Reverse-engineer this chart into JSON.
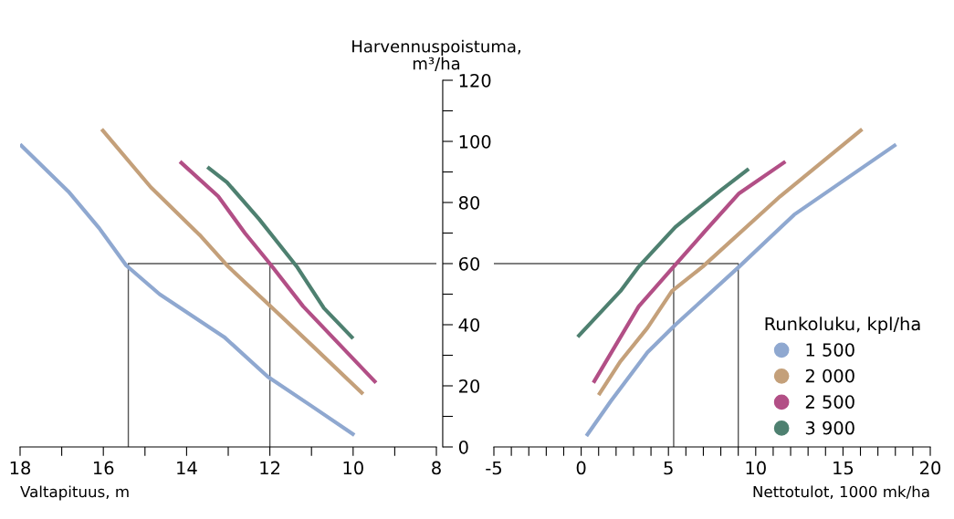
{
  "chart_data": [
    {
      "type": "line",
      "ylabel": "Harvennuspoistuma,\nm³/ha",
      "xlabel": "Valtapituus, m",
      "xlim": [
        18,
        8
      ],
      "ylim": [
        0,
        120
      ],
      "xticks": [
        18,
        {
          "value": 17,
          "label": null
        },
        16,
        {
          "value": 15,
          "label": null
        },
        14,
        {
          "value": 13,
          "label": null
        },
        12,
        {
          "value": 11,
          "label": null
        },
        10,
        {
          "value": 9,
          "label": null
        },
        8
      ],
      "yticks": [
        0,
        {
          "value": 10,
          "label": null
        },
        20,
        {
          "value": 30,
          "label": null
        },
        40,
        {
          "value": 50,
          "label": null
        },
        60,
        {
          "value": 70,
          "label": null
        },
        80,
        {
          "value": 90,
          "label": null
        },
        100,
        {
          "value": 110,
          "label": null
        },
        120
      ],
      "grid": false,
      "legend": false,
      "series": [
        {
          "color": "#555555",
          "x": [
            15.4,
            15.4,
            8
          ],
          "values": [
            0,
            60,
            60
          ]
        },
        {
          "color": "#555555",
          "x": [
            12,
            12
          ],
          "values": [
            0,
            60
          ]
        },
        {
          "color": "#8fa8d0",
          "x": [
            18,
            16.84,
            16.1,
            15.45,
            14.65,
            13.1,
            12.05,
            11.0,
            9.97
          ],
          "values": [
            99,
            83.6,
            71.6,
            59.4,
            50,
            36,
            23,
            13.4,
            3.9
          ]
        },
        {
          "color": "#c4a07a",
          "x": [
            16.04,
            14.86,
            13.66,
            13.0,
            12.06,
            11.0,
            9.76
          ],
          "values": [
            104,
            85,
            69,
            59,
            47,
            33.4,
            17.3
          ]
        },
        {
          "color": "#b24f86",
          "x": [
            14.16,
            13.24,
            12.6,
            12.0,
            11.2,
            9.45
          ],
          "values": [
            93.4,
            82,
            70,
            60,
            46,
            21
          ]
        },
        {
          "color": "#4e8070",
          "x": [
            13.5,
            13.03,
            12.26,
            11.34,
            10.7,
            10.0
          ],
          "values": [
            91.6,
            86.6,
            74.6,
            58.8,
            45.4,
            35.5
          ]
        }
      ]
    },
    {
      "type": "line",
      "xlabel": "Nettotulot, 1000 mk/ha",
      "xlim": [
        -5,
        20
      ],
      "ylim": [
        0,
        120
      ],
      "tick_labels": "x",
      "xticks": [
        -5,
        {
          "value": -4,
          "label": null
        },
        {
          "value": -3,
          "label": null
        },
        {
          "value": -2,
          "label": null
        },
        {
          "value": -1,
          "label": null
        },
        0,
        {
          "value": 1,
          "label": null
        },
        {
          "value": 2,
          "label": null
        },
        {
          "value": 3,
          "label": null
        },
        {
          "value": 4,
          "label": null
        },
        5,
        {
          "value": 6,
          "label": null
        },
        {
          "value": 7,
          "label": null
        },
        {
          "value": 8,
          "label": null
        },
        {
          "value": 9,
          "label": null
        },
        10,
        {
          "value": 11,
          "label": null
        },
        {
          "value": 12,
          "label": null
        },
        {
          "value": 13,
          "label": null
        },
        {
          "value": 14,
          "label": null
        },
        15,
        {
          "value": 16,
          "label": null
        },
        {
          "value": 17,
          "label": null
        },
        {
          "value": 18,
          "label": null
        },
        {
          "value": 19,
          "label": null
        },
        20
      ],
      "grid": false,
      "legend": "bottom right",
      "legend_title": "Runkoluku, kpl/ha",
      "series": [
        {
          "color": "#555555",
          "x": [
            -5,
            9,
            9
          ],
          "values": [
            60,
            60,
            0
          ]
        },
        {
          "color": "#555555",
          "x": [
            5.3,
            5.3
          ],
          "values": [
            0,
            60
          ]
        },
        {
          "name": "1 500",
          "color": "#8fa8d0",
          "x": [
            0.3,
            1.7,
            3.8,
            5.4,
            9.05,
            12.2,
            18.04
          ],
          "values": [
            3.6,
            15,
            31,
            40,
            59,
            76,
            99
          ]
        },
        {
          "name": "2 000",
          "color": "#c4a07a",
          "x": [
            1.0,
            2.25,
            3.8,
            5.2,
            6.96,
            11.4,
            16.1
          ],
          "values": [
            17,
            28,
            39,
            51,
            59,
            82,
            104
          ]
        },
        {
          "name": "2 500",
          "color": "#b24f86",
          "x": [
            0.7,
            3.3,
            5.3,
            7.0,
            9.05,
            11.7
          ],
          "values": [
            21,
            46,
            59,
            70,
            83,
            93.4
          ]
        },
        {
          "name": "3 900",
          "color": "#4e8070",
          "x": [
            -0.2,
            2.25,
            3.3,
            5.4,
            8.0,
            9.6
          ],
          "values": [
            36,
            51,
            59,
            72,
            84,
            91
          ]
        }
      ]
    }
  ]
}
